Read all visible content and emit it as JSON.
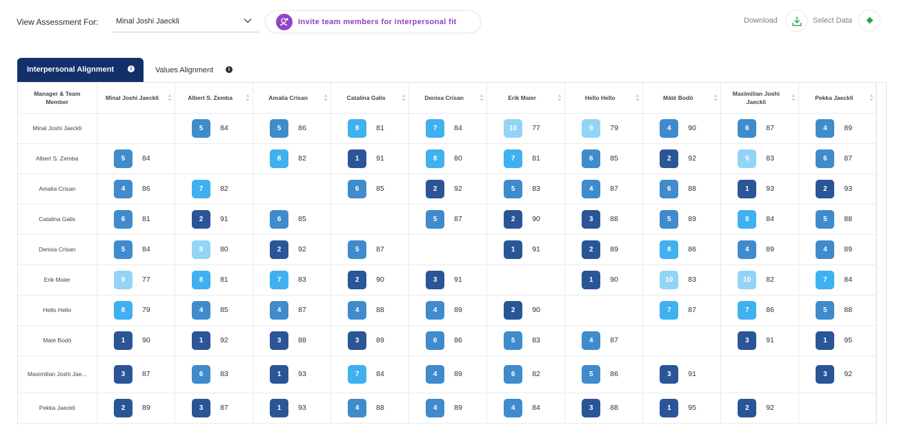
{
  "header": {
    "view_label": "View Assessment For:",
    "selected_person": "Minal Joshi Jaeckli",
    "invite_label": "Invite team members for interpersonal fit",
    "download_label": "Download",
    "select_data_label": "Select Data"
  },
  "tabs": [
    {
      "label": "Interpersonal Alignment",
      "active": true
    },
    {
      "label": "Values Alignment",
      "active": false
    }
  ],
  "colors": {
    "rank_1_3": "#2a5597",
    "rank_4_6": "#3f8bcc",
    "rank_7_8": "#3fb0f0",
    "rank_9_10": "#93d4f6",
    "tab_active": "#13306a",
    "invite_accent": "#8a3fc0"
  },
  "table": {
    "corner_header": "Manager & Team Member",
    "columns": [
      "Minal Joshi Jaeckli",
      "Albert S. Zemba",
      "Amalia Crisan",
      "Catalina Galis",
      "Denisa Crisan",
      "Erik Maier",
      "Hello Hello",
      "Máté Bodó",
      "Maximilian Joshi Jaeckli",
      "Pekka Jaeckli"
    ],
    "rows": [
      {
        "name": "Minal Joshi Jaeckli",
        "cells": [
          null,
          {
            "rank": 5,
            "score": 84
          },
          {
            "rank": 5,
            "score": 86
          },
          {
            "rank": 8,
            "score": 81
          },
          {
            "rank": 7,
            "score": 84
          },
          {
            "rank": 10,
            "score": 77
          },
          {
            "rank": 9,
            "score": 79
          },
          {
            "rank": 4,
            "score": 90
          },
          {
            "rank": 6,
            "score": 87
          },
          {
            "rank": 4,
            "score": 89
          }
        ]
      },
      {
        "name": "Albert S. Zemba",
        "cells": [
          {
            "rank": 5,
            "score": 84
          },
          null,
          {
            "rank": 8,
            "score": 82
          },
          {
            "rank": 1,
            "score": 91
          },
          {
            "rank": 8,
            "score": 80
          },
          {
            "rank": 7,
            "score": 81
          },
          {
            "rank": 6,
            "score": 85
          },
          {
            "rank": 2,
            "score": 92
          },
          {
            "rank": 9,
            "score": 83
          },
          {
            "rank": 6,
            "score": 87
          }
        ]
      },
      {
        "name": "Amalia Crisan",
        "cells": [
          {
            "rank": 4,
            "score": 86
          },
          {
            "rank": 7,
            "score": 82
          },
          null,
          {
            "rank": 6,
            "score": 85
          },
          {
            "rank": 2,
            "score": 92
          },
          {
            "rank": 5,
            "score": 83
          },
          {
            "rank": 4,
            "score": 87
          },
          {
            "rank": 6,
            "score": 88
          },
          {
            "rank": 1,
            "score": 93
          },
          {
            "rank": 2,
            "score": 93
          }
        ]
      },
      {
        "name": "Catalina Galis",
        "cells": [
          {
            "rank": 6,
            "score": 81
          },
          {
            "rank": 2,
            "score": 91
          },
          {
            "rank": 6,
            "score": 85
          },
          null,
          {
            "rank": 5,
            "score": 87
          },
          {
            "rank": 2,
            "score": 90
          },
          {
            "rank": 3,
            "score": 88
          },
          {
            "rank": 5,
            "score": 89
          },
          {
            "rank": 8,
            "score": 84
          },
          {
            "rank": 5,
            "score": 88
          }
        ]
      },
      {
        "name": "Denisa Crisan",
        "cells": [
          {
            "rank": 5,
            "score": 84
          },
          {
            "rank": 9,
            "score": 80
          },
          {
            "rank": 2,
            "score": 92
          },
          {
            "rank": 5,
            "score": 87
          },
          null,
          {
            "rank": 1,
            "score": 91
          },
          {
            "rank": 2,
            "score": 89
          },
          {
            "rank": 8,
            "score": 86
          },
          {
            "rank": 4,
            "score": 89
          },
          {
            "rank": 4,
            "score": 89
          }
        ]
      },
      {
        "name": "Erik Maier",
        "cells": [
          {
            "rank": 9,
            "score": 77
          },
          {
            "rank": 8,
            "score": 81
          },
          {
            "rank": 7,
            "score": 83
          },
          {
            "rank": 2,
            "score": 90
          },
          {
            "rank": 3,
            "score": 91
          },
          null,
          {
            "rank": 1,
            "score": 90
          },
          {
            "rank": 10,
            "score": 83
          },
          {
            "rank": 10,
            "score": 82
          },
          {
            "rank": 7,
            "score": 84
          }
        ]
      },
      {
        "name": "Hello Hello",
        "cells": [
          {
            "rank": 8,
            "score": 79
          },
          {
            "rank": 4,
            "score": 85
          },
          {
            "rank": 4,
            "score": 87
          },
          {
            "rank": 4,
            "score": 88
          },
          {
            "rank": 4,
            "score": 89
          },
          {
            "rank": 2,
            "score": 90
          },
          null,
          {
            "rank": 7,
            "score": 87
          },
          {
            "rank": 7,
            "score": 86
          },
          {
            "rank": 5,
            "score": 88
          }
        ]
      },
      {
        "name": "Máté Bodó",
        "cells": [
          {
            "rank": 1,
            "score": 90
          },
          {
            "rank": 1,
            "score": 92
          },
          {
            "rank": 3,
            "score": 88
          },
          {
            "rank": 3,
            "score": 89
          },
          {
            "rank": 6,
            "score": 86
          },
          {
            "rank": 5,
            "score": 83
          },
          {
            "rank": 4,
            "score": 87
          },
          null,
          {
            "rank": 3,
            "score": 91
          },
          {
            "rank": 1,
            "score": 95
          }
        ]
      },
      {
        "name": "Maximilian Joshi Jae...",
        "cells": [
          {
            "rank": 3,
            "score": 87
          },
          {
            "rank": 6,
            "score": 83
          },
          {
            "rank": 1,
            "score": 93
          },
          {
            "rank": 7,
            "score": 84
          },
          {
            "rank": 4,
            "score": 89
          },
          {
            "rank": 6,
            "score": 82
          },
          {
            "rank": 5,
            "score": 86
          },
          {
            "rank": 3,
            "score": 91
          },
          null,
          {
            "rank": 3,
            "score": 92
          }
        ]
      },
      {
        "name": "Pekka Jaeckli",
        "cells": [
          {
            "rank": 2,
            "score": 89
          },
          {
            "rank": 3,
            "score": 87
          },
          {
            "rank": 1,
            "score": 93
          },
          {
            "rank": 4,
            "score": 88
          },
          {
            "rank": 4,
            "score": 89
          },
          {
            "rank": 4,
            "score": 84
          },
          {
            "rank": 3,
            "score": 88
          },
          {
            "rank": 1,
            "score": 95
          },
          {
            "rank": 2,
            "score": 92
          },
          null
        ]
      }
    ]
  }
}
